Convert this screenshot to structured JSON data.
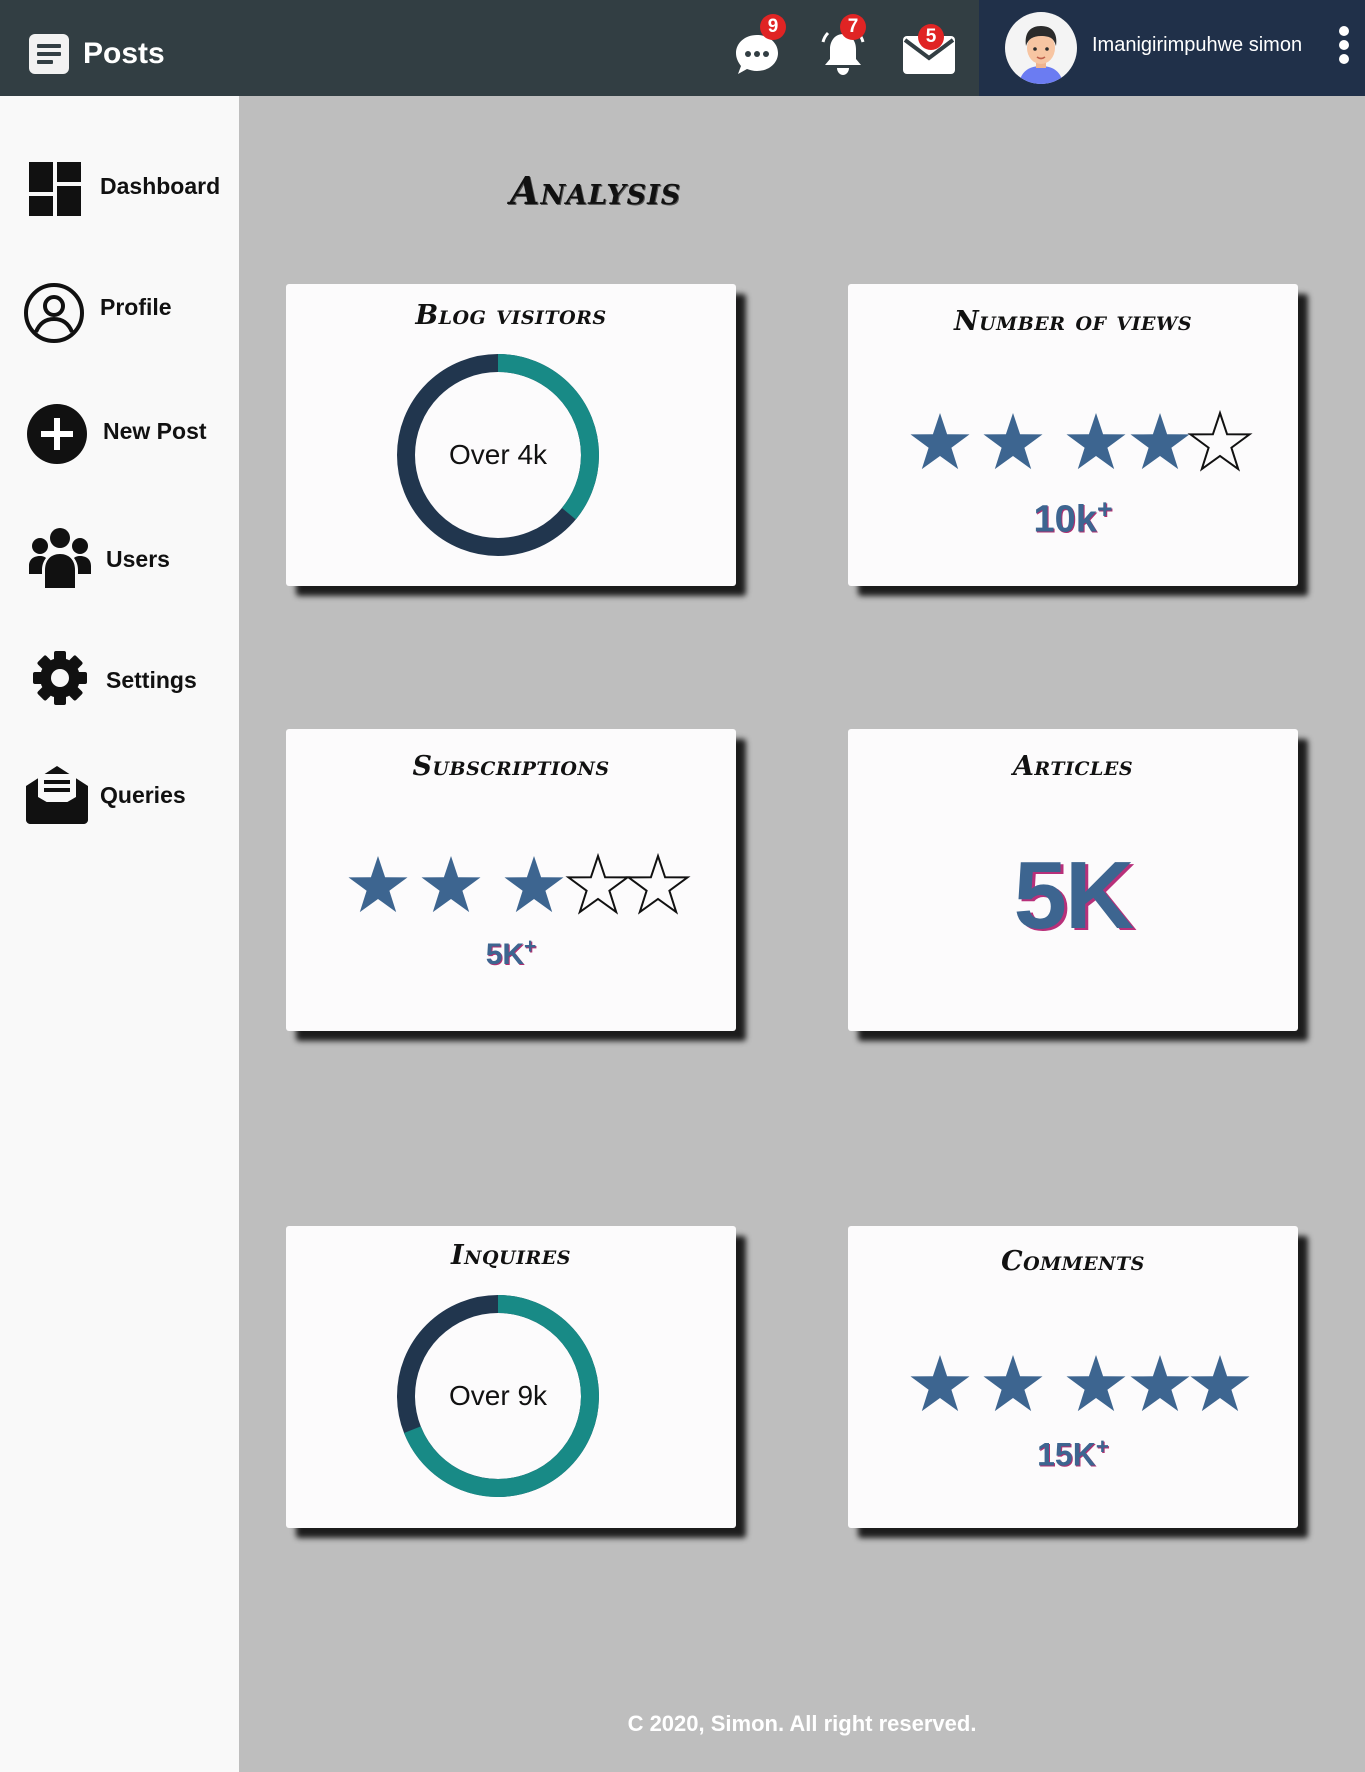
{
  "header": {
    "title": "Posts",
    "messages_badge": "9",
    "notifications_badge": "7",
    "mail_badge": "5",
    "user_name": "Imanigirimpuhwe simon",
    "icons": [
      "document-icon",
      "chat-bubble-icon",
      "bell-icon",
      "mail-icon",
      "avatar",
      "more-vertical-icon"
    ]
  },
  "sidebar": {
    "items": [
      {
        "label": "Dashboard",
        "icon": "dashboard-icon"
      },
      {
        "label": "Profile",
        "icon": "user-circle-icon"
      },
      {
        "label": "New Post",
        "icon": "plus-circle-icon"
      },
      {
        "label": "Users",
        "icon": "users-icon"
      },
      {
        "label": "Settings",
        "icon": "gear-icon"
      },
      {
        "label": "Queries",
        "icon": "envelope-open-icon"
      }
    ]
  },
  "main": {
    "title": "Analysis",
    "cards": [
      {
        "title": "Blog visitors",
        "kind": "ring",
        "value_text": "Over 4k",
        "ring_fraction": 0.36
      },
      {
        "title": "Number of views",
        "kind": "stars",
        "stars_filled": 4,
        "stars_total": 5,
        "value_main": "10k",
        "value_sup": "+"
      },
      {
        "title": "Subscriptions",
        "kind": "stars",
        "stars_filled": 3,
        "stars_total": 5,
        "value_main": "5K",
        "value_sup": "+"
      },
      {
        "title": "Articles",
        "kind": "big",
        "value_main": "5K"
      },
      {
        "title": "Inquires",
        "kind": "ring",
        "value_text": "Over 9k",
        "ring_fraction": 0.69
      },
      {
        "title": "Comments",
        "kind": "stars",
        "stars_filled": 5,
        "stars_total": 5,
        "value_main": "15K",
        "value_sup": "+"
      }
    ]
  },
  "footer": {
    "text": "C 2020, Simon. All right reserved."
  },
  "colors": {
    "header_bg": "#323e43",
    "user_bg": "#203049",
    "main_bg": "#bebebe",
    "sidebar_bg": "#f9f9f9",
    "star_fill": "#3d6590",
    "ring_teal": "#188a86",
    "ring_dark": "#21364e",
    "badge_red": "#e02424",
    "value_accent": "#b8307a"
  }
}
